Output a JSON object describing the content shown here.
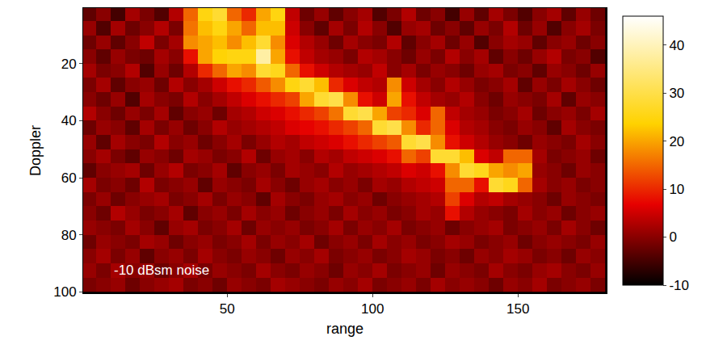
{
  "chart_data": {
    "type": "heatmap",
    "xlabel": "range",
    "ylabel": "Doppler",
    "annotations": [
      "-10 dBsm noise"
    ],
    "xlim": [
      0.5,
      180.5
    ],
    "xticks": [
      50,
      100,
      150
    ],
    "ylim": [
      100.5,
      0.5
    ],
    "yticks": [
      20,
      40,
      60,
      80,
      100
    ],
    "zlim": [
      -10,
      46
    ],
    "zticks": [
      -10,
      0,
      10,
      20,
      30,
      40
    ],
    "x": [
      2.5,
      7.5,
      12.5,
      17.5,
      22.5,
      27.5,
      32.5,
      37.5,
      42.5,
      47.5,
      52.5,
      57.5,
      62.5,
      67.5,
      72.5,
      77.5,
      82.5,
      87.5,
      92.5,
      97.5,
      102.5,
      107.5,
      112.5,
      117.5,
      122.5,
      127.5,
      132.5,
      137.5,
      142.5,
      147.5,
      152.5,
      157.5,
      162.5,
      167.5,
      172.5,
      177.5
    ],
    "y": [
      2.5,
      7.5,
      12.5,
      17.5,
      22.5,
      27.5,
      32.5,
      37.5,
      42.5,
      47.5,
      52.5,
      57.5,
      62.5,
      67.5,
      72.5,
      77.5,
      82.5,
      87.5,
      92.5,
      97.5
    ],
    "cells": [
      [
        -3,
        0,
        -5,
        2,
        -1,
        -4,
        3,
        15,
        25,
        28,
        15,
        10,
        20,
        25,
        4,
        -2,
        1,
        -3,
        0,
        2,
        -4,
        -1,
        3,
        -2,
        0,
        -5,
        1,
        -3,
        2,
        -1,
        -4,
        0,
        2,
        -3,
        1,
        -2
      ],
      [
        1,
        -4,
        2,
        -2,
        0,
        3,
        -1,
        16,
        22,
        25,
        20,
        15,
        22,
        22,
        5,
        0,
        -3,
        2,
        -1,
        3,
        0,
        -4,
        1,
        2,
        -2,
        0,
        -3,
        1,
        -1,
        3,
        -2,
        1,
        -4,
        0,
        2,
        -1
      ],
      [
        -2,
        1,
        -3,
        0,
        4,
        -1,
        2,
        18,
        20,
        22,
        18,
        22,
        28,
        18,
        6,
        3,
        1,
        -2,
        2,
        0,
        -1,
        3,
        -3,
        0,
        2,
        -2,
        1,
        -4,
        0,
        2,
        1,
        -3,
        0,
        1,
        -2,
        0
      ],
      [
        0,
        -3,
        1,
        -1,
        -2,
        2,
        0,
        8,
        20,
        24,
        25,
        25,
        38,
        20,
        8,
        4,
        2,
        1,
        -1,
        3,
        2,
        0,
        -2,
        1,
        -1,
        3,
        0,
        2,
        -3,
        0,
        -2,
        1,
        3,
        -1,
        0,
        -4
      ],
      [
        2,
        -1,
        0,
        3,
        -4,
        1,
        -2,
        3,
        10,
        15,
        20,
        18,
        28,
        26,
        15,
        8,
        5,
        3,
        2,
        1,
        4,
        0,
        2,
        -1,
        1,
        0,
        -2,
        1,
        2,
        -1,
        0,
        -3,
        1,
        0,
        -2,
        1
      ],
      [
        -1,
        2,
        -3,
        0,
        1,
        -2,
        3,
        0,
        2,
        5,
        8,
        10,
        14,
        18,
        25,
        28,
        22,
        10,
        6,
        4,
        3,
        18,
        5,
        2,
        0,
        3,
        1,
        -1,
        0,
        2,
        -3,
        1,
        -1,
        2,
        0,
        -2
      ],
      [
        0,
        -2,
        1,
        -4,
        2,
        0,
        -1,
        3,
        0,
        2,
        4,
        6,
        8,
        10,
        12,
        20,
        28,
        30,
        18,
        8,
        5,
        20,
        8,
        4,
        2,
        1,
        3,
        0,
        -2,
        1,
        0,
        -1,
        2,
        -3,
        1,
        0
      ],
      [
        3,
        0,
        -2,
        1,
        -1,
        2,
        -3,
        0,
        1,
        -2,
        2,
        3,
        5,
        6,
        8,
        10,
        12,
        16,
        28,
        30,
        20,
        12,
        10,
        6,
        15,
        4,
        2,
        1,
        -1,
        0,
        2,
        -2,
        0,
        1,
        -1,
        2
      ],
      [
        -2,
        1,
        0,
        -3,
        2,
        -1,
        1,
        -2,
        0,
        3,
        1,
        2,
        3,
        4,
        6,
        7,
        8,
        10,
        12,
        15,
        28,
        30,
        18,
        10,
        15,
        6,
        3,
        2,
        0,
        -1,
        1,
        0,
        -3,
        2,
        0,
        -1
      ],
      [
        1,
        -3,
        2,
        0,
        -1,
        3,
        0,
        1,
        -2,
        0,
        2,
        -1,
        1,
        3,
        2,
        4,
        5,
        6,
        8,
        10,
        12,
        14,
        28,
        30,
        18,
        8,
        5,
        3,
        1,
        0,
        -2,
        1,
        0,
        -1,
        2,
        0
      ],
      [
        0,
        2,
        -1,
        -3,
        1,
        0,
        -2,
        2,
        1,
        -1,
        0,
        3,
        -2,
        1,
        2,
        0,
        3,
        2,
        4,
        5,
        6,
        8,
        15,
        12,
        28,
        28,
        22,
        6,
        4,
        15,
        15,
        2,
        -1,
        0,
        1,
        -2
      ],
      [
        -3,
        0,
        1,
        2,
        -2,
        1,
        3,
        -1,
        0,
        2,
        -3,
        0,
        1,
        -1,
        2,
        1,
        0,
        3,
        1,
        2,
        3,
        4,
        6,
        5,
        8,
        18,
        28,
        26,
        20,
        18,
        20,
        1,
        0,
        -2,
        1,
        0
      ],
      [
        2,
        -1,
        0,
        -2,
        3,
        -1,
        0,
        1,
        -3,
        1,
        0,
        -1,
        2,
        0,
        -2,
        1,
        2,
        0,
        1,
        -1,
        2,
        1,
        3,
        4,
        5,
        15,
        15,
        8,
        28,
        26,
        15,
        2,
        0,
        1,
        -1,
        0
      ],
      [
        -1,
        1,
        -2,
        0,
        1,
        2,
        -1,
        0,
        2,
        -1,
        1,
        0,
        -3,
        2,
        0,
        -1,
        1,
        2,
        0,
        1,
        -2,
        0,
        1,
        2,
        3,
        12,
        6,
        3,
        4,
        2,
        1,
        0,
        -2,
        1,
        0,
        -1
      ],
      [
        0,
        -2,
        3,
        1,
        -1,
        0,
        2,
        -3,
        0,
        1,
        -1,
        2,
        0,
        1,
        -2,
        0,
        1,
        -1,
        2,
        0,
        1,
        -1,
        0,
        2,
        1,
        8,
        3,
        1,
        0,
        -1,
        2,
        0,
        1,
        -2,
        0,
        1
      ],
      [
        1,
        0,
        -1,
        2,
        0,
        -3,
        1,
        2,
        -1,
        0,
        2,
        -2,
        1,
        0,
        1,
        -1,
        0,
        2,
        -1,
        1,
        0,
        2,
        -1,
        0,
        1,
        -2,
        0,
        1,
        2,
        -1,
        0,
        1,
        -1,
        2,
        0,
        -2
      ],
      [
        -2,
        1,
        0,
        -1,
        2,
        1,
        -2,
        0,
        1,
        -1,
        0,
        2,
        -1,
        1,
        0,
        2,
        -2,
        0,
        1,
        -1,
        2,
        0,
        1,
        -1,
        0,
        2,
        1,
        -1,
        0,
        1,
        -2,
        0,
        1,
        0,
        -1,
        1
      ],
      [
        0,
        2,
        -1,
        1,
        -3,
        0,
        1,
        -1,
        2,
        0,
        -1,
        1,
        0,
        -2,
        1,
        0,
        2,
        -1,
        0,
        1,
        -1,
        0,
        2,
        1,
        -1,
        0,
        -2,
        1,
        0,
        2,
        1,
        -1,
        0,
        -2,
        1,
        0
      ],
      [
        1,
        -1,
        2,
        0,
        1,
        -2,
        0,
        2,
        -1,
        1,
        0,
        -1,
        2,
        0,
        -1,
        1,
        0,
        -2,
        1,
        0,
        2,
        -1,
        0,
        1,
        -2,
        1,
        0,
        -1,
        2,
        0,
        -1,
        1,
        2,
        0,
        -1,
        1
      ],
      [
        -1,
        0,
        1,
        -2,
        0,
        1,
        2,
        -1,
        0,
        -2,
        1,
        0,
        -1,
        2,
        1,
        0,
        -1,
        1,
        0,
        2,
        -1,
        0,
        1,
        -1,
        2,
        0,
        1,
        0,
        -2,
        1,
        0,
        2,
        -1,
        0,
        1,
        -1
      ]
    ]
  }
}
